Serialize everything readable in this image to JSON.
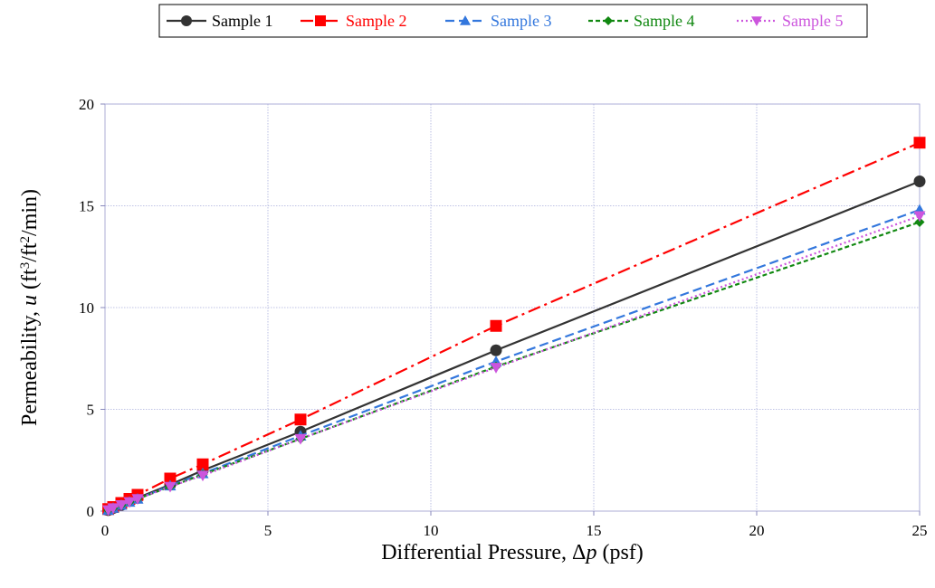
{
  "chart_data": {
    "type": "line",
    "xlabel_parts": [
      "Differential Pressure, ",
      "Δ",
      "p",
      " (psf)"
    ],
    "ylabel_parts": [
      "Permeability, ",
      "u",
      "  (ft",
      "3",
      "/ft",
      "2",
      "/min)"
    ],
    "xlim": [
      0,
      25
    ],
    "ylim": [
      0,
      20
    ],
    "xticks": [
      0,
      5,
      10,
      15,
      20,
      25
    ],
    "yticks": [
      0,
      5,
      10,
      15,
      20
    ],
    "grid": true,
    "legend_position": "top-center",
    "series": [
      {
        "name": "Sample 1",
        "color": "#333333",
        "marker": "circle",
        "dash": "solid",
        "x": [
          0.1,
          0.25,
          0.5,
          0.75,
          1,
          2,
          3,
          6,
          12,
          25
        ],
        "y": [
          0.05,
          0.15,
          0.3,
          0.5,
          0.65,
          1.3,
          2.0,
          3.9,
          7.9,
          16.2
        ]
      },
      {
        "name": "Sample 2",
        "color": "#ff0000",
        "marker": "square",
        "dash": "dashdot",
        "x": [
          0.1,
          0.25,
          0.5,
          0.75,
          1,
          2,
          3,
          6,
          12,
          25
        ],
        "y": [
          0.1,
          0.2,
          0.4,
          0.6,
          0.8,
          1.6,
          2.3,
          4.5,
          9.1,
          18.1
        ]
      },
      {
        "name": "Sample 3",
        "color": "#3377dd",
        "marker": "triangle-up",
        "dash": "dashed",
        "x": [
          0.1,
          0.25,
          0.5,
          0.75,
          1,
          2,
          3,
          6,
          12,
          25
        ],
        "y": [
          0.05,
          0.15,
          0.3,
          0.45,
          0.6,
          1.25,
          1.85,
          3.7,
          7.35,
          14.8
        ]
      },
      {
        "name": "Sample 4",
        "color": "#118811",
        "marker": "diamond",
        "dash": "dashed-short",
        "x": [
          0.1,
          0.25,
          0.5,
          0.75,
          1,
          2,
          3,
          6,
          12,
          25
        ],
        "y": [
          0.05,
          0.15,
          0.3,
          0.45,
          0.6,
          1.2,
          1.8,
          3.55,
          7.1,
          14.2
        ]
      },
      {
        "name": "Sample 5",
        "color": "#cc55dd",
        "marker": "triangle-down",
        "dash": "dotted",
        "x": [
          0.1,
          0.25,
          0.5,
          0.75,
          1,
          2,
          3,
          6,
          12,
          25
        ],
        "y": [
          0.05,
          0.15,
          0.3,
          0.45,
          0.6,
          1.2,
          1.75,
          3.55,
          7.05,
          14.5
        ]
      }
    ]
  }
}
